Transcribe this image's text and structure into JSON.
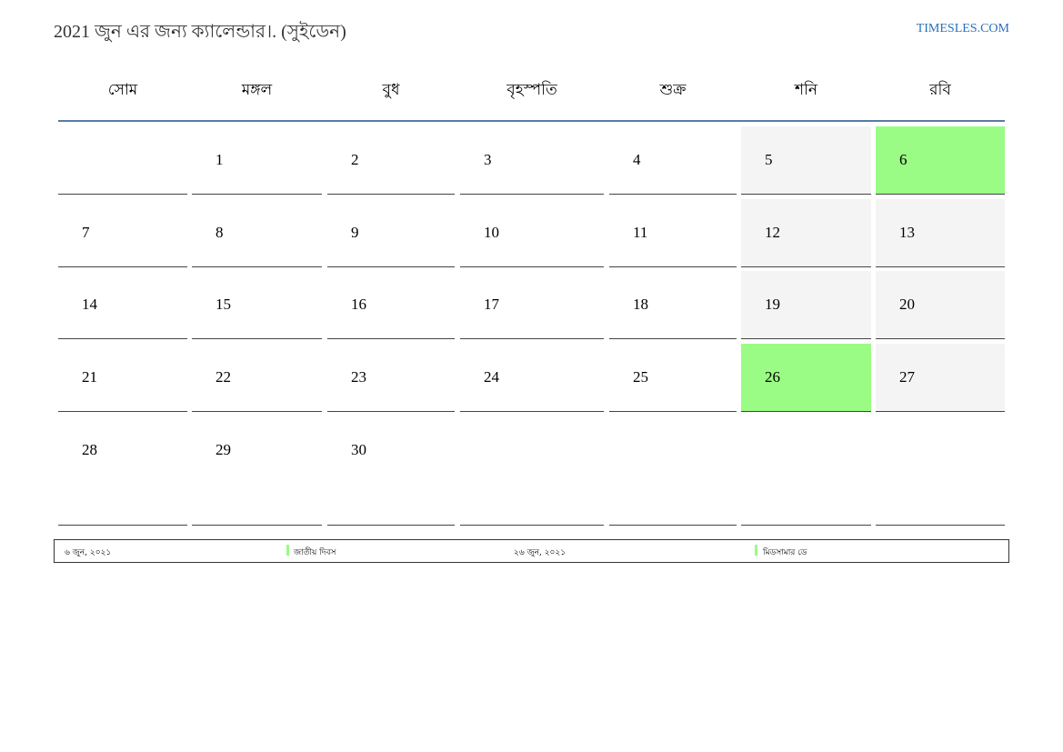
{
  "header": {
    "title": "2021 জুন এর জন্য ক্যালেন্ডার।. (সুইডেন)",
    "site": "TIMESLES.COM"
  },
  "colors": {
    "holiday": "#9afc84",
    "weekend": "#f4f4f4",
    "rule": "#5a7aa6",
    "link": "#2a6ebb"
  },
  "weekdays": [
    "সোম",
    "মঙ্গল",
    "বুধ",
    "বৃহস্পতি",
    "শুক্র",
    "শনি",
    "রবি"
  ],
  "weeks": [
    [
      "",
      "1",
      "2",
      "3",
      "4",
      "5",
      "6"
    ],
    [
      "7",
      "8",
      "9",
      "10",
      "11",
      "12",
      "13"
    ],
    [
      "14",
      "15",
      "16",
      "17",
      "18",
      "19",
      "20"
    ],
    [
      "21",
      "22",
      "23",
      "24",
      "25",
      "26",
      "27"
    ],
    [
      "28",
      "29",
      "30",
      "",
      "",
      "",
      ""
    ]
  ],
  "holiday_days": [
    "6",
    "26"
  ],
  "holidays": [
    {
      "date": "৬ জুন, ২০২১",
      "name": "জাতীয় দিবস"
    },
    {
      "date": "২৬ জুন, ২০২১",
      "name": "মিডসামার ডে"
    }
  ]
}
